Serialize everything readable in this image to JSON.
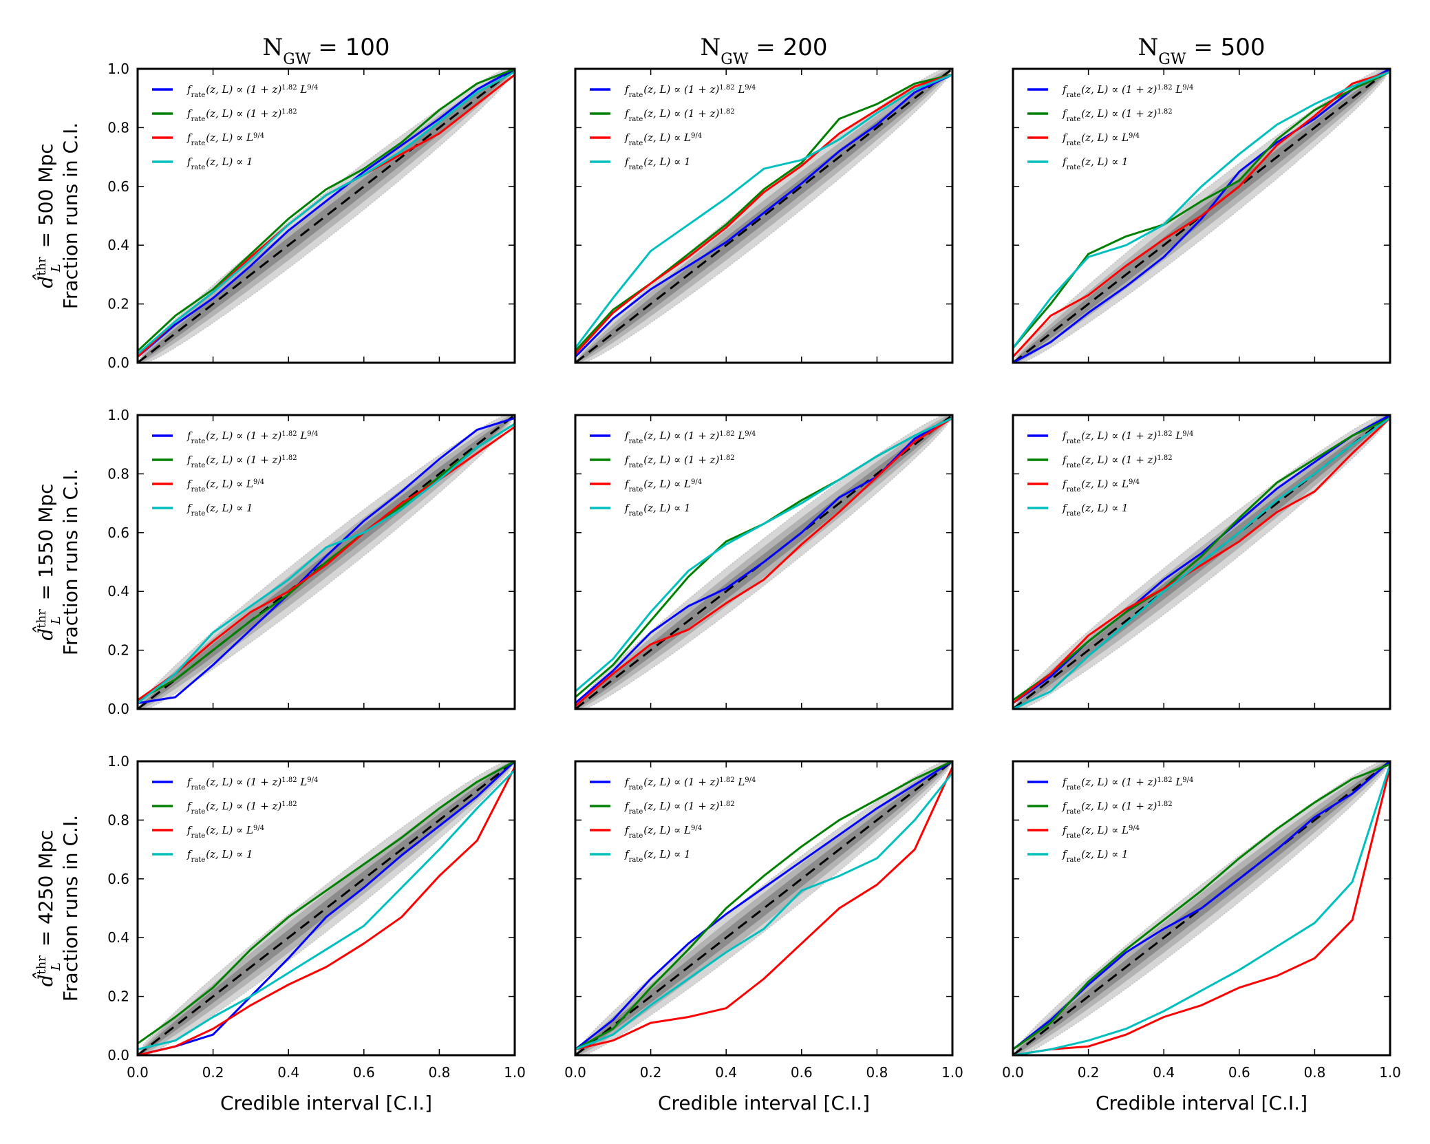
{
  "colors": {
    "series": [
      "#0000ff",
      "#008000",
      "#ff0000",
      "#00bfbf"
    ],
    "reference": "#000000",
    "band_outer": "#d6d6d6",
    "band_mid": "#b3b3b3",
    "band_inner": "#8c8c8c"
  },
  "chart_data": {
    "type": "line",
    "grid_rows": 3,
    "grid_cols": 3,
    "xlabel": "Credible interval [C.I.]",
    "ylabel_line2": "Fraction runs in C.I.",
    "x_range": [
      0,
      1
    ],
    "y_range": [
      0,
      1
    ],
    "x_ticks": [
      "0.0",
      "0.2",
      "0.4",
      "0.6",
      "0.8",
      "1.0"
    ],
    "y_ticks": [
      "0.0",
      "0.2",
      "0.4",
      "0.6",
      "0.8",
      "1.0"
    ],
    "column_titles": [
      "N_GW = 100",
      "N_GW = 200",
      "N_GW = 500"
    ],
    "column_title_parts": [
      {
        "base": "N",
        "sub": "GW",
        "eq": " = ",
        "num": "100"
      },
      {
        "base": "N",
        "sub": "GW",
        "eq": " = ",
        "num": "200"
      },
      {
        "base": "N",
        "sub": "GW",
        "eq": " = ",
        "num": "500"
      }
    ],
    "row_labels": [
      "d_L^thr = 500 Mpc",
      "d_L^thr = 1550 Mpc",
      "d_L^thr = 4250 Mpc"
    ],
    "row_label_parts": [
      {
        "sym": "d̂",
        "sup": "thr",
        "sub": "L",
        "rest": " = 500 Mpc"
      },
      {
        "sym": "d̂",
        "sup": "thr",
        "sub": "L",
        "rest": " = 1550 Mpc"
      },
      {
        "sym": "d̂",
        "sup": "thr",
        "sub": "L",
        "rest": " = 4250 Mpc"
      }
    ],
    "legend_location": "upper-left",
    "legend": [
      "f_rate(z, L) ∝ (1 + z)^1.82 L^9/4",
      "f_rate(z, L) ∝ (1 + z)^1.82",
      "f_rate(z, L) ∝ L^9/4",
      "f_rate(z, L) ∝ 1"
    ],
    "legend_parts": [
      {
        "f": "f",
        "fs": "rate",
        "mid": "(z, L) ∝ (1 + z)",
        "s1": "1.82",
        "tail": " L",
        "s2": "9/4"
      },
      {
        "f": "f",
        "fs": "rate",
        "mid": "(z, L) ∝ (1 + z)",
        "s1": "1.82",
        "tail": "",
        "s2": ""
      },
      {
        "f": "f",
        "fs": "rate",
        "mid": "(z, L) ∝ L",
        "s1": "9/4",
        "tail": "",
        "s2": ""
      },
      {
        "f": "f",
        "fs": "rate",
        "mid": "(z, L) ∝ 1",
        "s1": "",
        "tail": "",
        "s2": ""
      }
    ],
    "reference_line": {
      "style": "dashed",
      "x": [
        0,
        1
      ],
      "y": [
        0,
        1
      ]
    },
    "x": [
      0,
      0.1,
      0.2,
      0.3,
      0.4,
      0.5,
      0.6,
      0.7,
      0.8,
      0.9,
      1.0
    ],
    "panels": [
      {
        "row": 0,
        "col": 0,
        "series": [
          {
            "name": "f_rate(z, L) ∝ (1 + z)^1.82 L^9/4",
            "y": [
              0.02,
              0.13,
              0.22,
              0.33,
              0.45,
              0.55,
              0.65,
              0.74,
              0.83,
              0.93,
              1.0
            ]
          },
          {
            "name": "f_rate(z, L) ∝ (1 + z)^1.82",
            "y": [
              0.04,
              0.16,
              0.25,
              0.37,
              0.49,
              0.59,
              0.66,
              0.75,
              0.86,
              0.95,
              1.0
            ]
          },
          {
            "name": "f_rate(z, L) ∝ L^9/4",
            "y": [
              0.02,
              0.14,
              0.24,
              0.36,
              0.47,
              0.57,
              0.64,
              0.71,
              0.78,
              0.88,
              0.98
            ]
          },
          {
            "name": "f_rate(z, L) ∝ 1",
            "y": [
              0.03,
              0.14,
              0.24,
              0.35,
              0.47,
              0.57,
              0.64,
              0.72,
              0.82,
              0.92,
              0.99
            ]
          }
        ]
      },
      {
        "row": 0,
        "col": 1,
        "series": [
          {
            "name": "f_rate(z, L) ∝ (1 + z)^1.82 L^9/4",
            "y": [
              0.02,
              0.15,
              0.25,
              0.33,
              0.41,
              0.51,
              0.61,
              0.72,
              0.81,
              0.92,
              0.98
            ]
          },
          {
            "name": "f_rate(z, L) ∝ (1 + z)^1.82",
            "y": [
              0.04,
              0.18,
              0.27,
              0.37,
              0.47,
              0.59,
              0.68,
              0.83,
              0.88,
              0.95,
              0.98
            ]
          },
          {
            "name": "f_rate(z, L) ∝ L^9/4",
            "y": [
              0.03,
              0.17,
              0.27,
              0.36,
              0.46,
              0.58,
              0.67,
              0.78,
              0.86,
              0.94,
              0.98
            ]
          },
          {
            "name": "f_rate(z, L) ∝ 1",
            "y": [
              0.05,
              0.22,
              0.38,
              0.47,
              0.56,
              0.66,
              0.69,
              0.76,
              0.85,
              0.93,
              0.98
            ]
          }
        ]
      },
      {
        "row": 0,
        "col": 2,
        "series": [
          {
            "name": "f_rate(z, L) ∝ (1 + z)^1.82 L^9/4",
            "y": [
              0.0,
              0.07,
              0.17,
              0.26,
              0.36,
              0.49,
              0.65,
              0.75,
              0.83,
              0.93,
              1.0
            ]
          },
          {
            "name": "f_rate(z, L) ∝ (1 + z)^1.82",
            "y": [
              0.05,
              0.2,
              0.37,
              0.43,
              0.47,
              0.55,
              0.62,
              0.76,
              0.86,
              0.93,
              0.99
            ]
          },
          {
            "name": "f_rate(z, L) ∝ L^9/4",
            "y": [
              0.02,
              0.16,
              0.23,
              0.33,
              0.42,
              0.5,
              0.6,
              0.74,
              0.84,
              0.95,
              0.99
            ]
          },
          {
            "name": "f_rate(z, L) ∝ 1",
            "y": [
              0.05,
              0.22,
              0.36,
              0.4,
              0.47,
              0.6,
              0.71,
              0.81,
              0.88,
              0.94,
              0.99
            ]
          }
        ]
      },
      {
        "row": 1,
        "col": 0,
        "series": [
          {
            "name": "f_rate(z, L) ∝ (1 + z)^1.82 L^9/4",
            "y": [
              0.02,
              0.04,
              0.15,
              0.27,
              0.39,
              0.52,
              0.64,
              0.74,
              0.85,
              0.95,
              0.99
            ]
          },
          {
            "name": "f_rate(z, L) ∝ (1 + z)^1.82",
            "y": [
              0.03,
              0.1,
              0.2,
              0.3,
              0.39,
              0.5,
              0.6,
              0.69,
              0.79,
              0.89,
              0.97
            ]
          },
          {
            "name": "f_rate(z, L) ∝ L^9/4",
            "y": [
              0.03,
              0.12,
              0.23,
              0.33,
              0.4,
              0.49,
              0.6,
              0.7,
              0.78,
              0.87,
              0.96
            ]
          },
          {
            "name": "f_rate(z, L) ∝ 1",
            "y": [
              0.02,
              0.12,
              0.26,
              0.35,
              0.44,
              0.55,
              0.6,
              0.68,
              0.78,
              0.89,
              0.97
            ]
          }
        ]
      },
      {
        "row": 1,
        "col": 1,
        "series": [
          {
            "name": "f_rate(z, L) ∝ (1 + z)^1.82 L^9/4",
            "y": [
              0.02,
              0.13,
              0.26,
              0.35,
              0.41,
              0.5,
              0.6,
              0.72,
              0.79,
              0.92,
              0.99
            ]
          },
          {
            "name": "f_rate(z, L) ∝ (1 + z)^1.82",
            "y": [
              0.04,
              0.15,
              0.3,
              0.45,
              0.57,
              0.63,
              0.71,
              0.78,
              0.86,
              0.93,
              0.99
            ]
          },
          {
            "name": "f_rate(z, L) ∝ L^9/4",
            "y": [
              0.01,
              0.12,
              0.22,
              0.27,
              0.36,
              0.44,
              0.56,
              0.67,
              0.79,
              0.91,
              0.99
            ]
          },
          {
            "name": "f_rate(z, L) ∝ 1",
            "y": [
              0.06,
              0.17,
              0.33,
              0.47,
              0.56,
              0.63,
              0.7,
              0.78,
              0.86,
              0.93,
              0.99
            ]
          }
        ]
      },
      {
        "row": 1,
        "col": 2,
        "series": [
          {
            "name": "f_rate(z, L) ∝ (1 + z)^1.82 L^9/4",
            "y": [
              0.02,
              0.11,
              0.23,
              0.33,
              0.44,
              0.53,
              0.64,
              0.75,
              0.84,
              0.93,
              1.0
            ]
          },
          {
            "name": "f_rate(z, L) ∝ (1 + z)^1.82",
            "y": [
              0.03,
              0.12,
              0.23,
              0.33,
              0.41,
              0.52,
              0.65,
              0.77,
              0.85,
              0.93,
              0.99
            ]
          },
          {
            "name": "f_rate(z, L) ∝ L^9/4",
            "y": [
              0.02,
              0.12,
              0.25,
              0.34,
              0.41,
              0.49,
              0.57,
              0.67,
              0.74,
              0.87,
              0.99
            ]
          },
          {
            "name": "f_rate(z, L) ∝ 1",
            "y": [
              0.0,
              0.06,
              0.18,
              0.29,
              0.4,
              0.5,
              0.6,
              0.71,
              0.8,
              0.9,
              0.99
            ]
          }
        ]
      },
      {
        "row": 2,
        "col": 0,
        "series": [
          {
            "name": "f_rate(z, L) ∝ (1 + z)^1.82 L^9/4",
            "y": [
              0.0,
              0.03,
              0.07,
              0.2,
              0.33,
              0.47,
              0.57,
              0.68,
              0.78,
              0.88,
              1.0
            ]
          },
          {
            "name": "f_rate(z, L) ∝ (1 + z)^1.82",
            "y": [
              0.04,
              0.13,
              0.23,
              0.36,
              0.47,
              0.56,
              0.65,
              0.74,
              0.84,
              0.93,
              1.0
            ]
          },
          {
            "name": "f_rate(z, L) ∝ L^9/4",
            "y": [
              0.0,
              0.03,
              0.09,
              0.17,
              0.24,
              0.3,
              0.38,
              0.47,
              0.61,
              0.73,
              0.98
            ]
          },
          {
            "name": "f_rate(z, L) ∝ 1",
            "y": [
              0.02,
              0.05,
              0.13,
              0.2,
              0.28,
              0.36,
              0.44,
              0.57,
              0.7,
              0.84,
              0.97
            ]
          }
        ]
      },
      {
        "row": 2,
        "col": 1,
        "series": [
          {
            "name": "f_rate(z, L) ∝ (1 + z)^1.82 L^9/4",
            "y": [
              0.02,
              0.12,
              0.26,
              0.38,
              0.48,
              0.57,
              0.66,
              0.75,
              0.84,
              0.92,
              1.0
            ]
          },
          {
            "name": "f_rate(z, L) ∝ (1 + z)^1.82",
            "y": [
              0.02,
              0.09,
              0.23,
              0.36,
              0.5,
              0.61,
              0.71,
              0.8,
              0.87,
              0.94,
              1.0
            ]
          },
          {
            "name": "f_rate(z, L) ∝ L^9/4",
            "y": [
              0.02,
              0.05,
              0.11,
              0.13,
              0.16,
              0.26,
              0.38,
              0.5,
              0.58,
              0.7,
              0.98
            ]
          },
          {
            "name": "f_rate(z, L) ∝ 1",
            "y": [
              0.02,
              0.07,
              0.17,
              0.26,
              0.35,
              0.43,
              0.56,
              0.61,
              0.67,
              0.8,
              0.96
            ]
          }
        ]
      },
      {
        "row": 2,
        "col": 2,
        "series": [
          {
            "name": "f_rate(z, L) ∝ (1 + z)^1.82 L^9/4",
            "y": [
              0.02,
              0.12,
              0.24,
              0.35,
              0.43,
              0.5,
              0.6,
              0.7,
              0.81,
              0.89,
              1.0
            ]
          },
          {
            "name": "f_rate(z, L) ∝ (1 + z)^1.82",
            "y": [
              0.02,
              0.11,
              0.25,
              0.36,
              0.46,
              0.56,
              0.67,
              0.77,
              0.86,
              0.94,
              0.99
            ]
          },
          {
            "name": "f_rate(z, L) ∝ L^9/4",
            "y": [
              0.0,
              0.02,
              0.03,
              0.07,
              0.13,
              0.17,
              0.23,
              0.27,
              0.33,
              0.46,
              0.98
            ]
          },
          {
            "name": "f_rate(z, L) ∝ 1",
            "y": [
              0.0,
              0.02,
              0.05,
              0.09,
              0.15,
              0.22,
              0.29,
              0.37,
              0.45,
              0.59,
              0.99
            ]
          }
        ]
      }
    ]
  }
}
